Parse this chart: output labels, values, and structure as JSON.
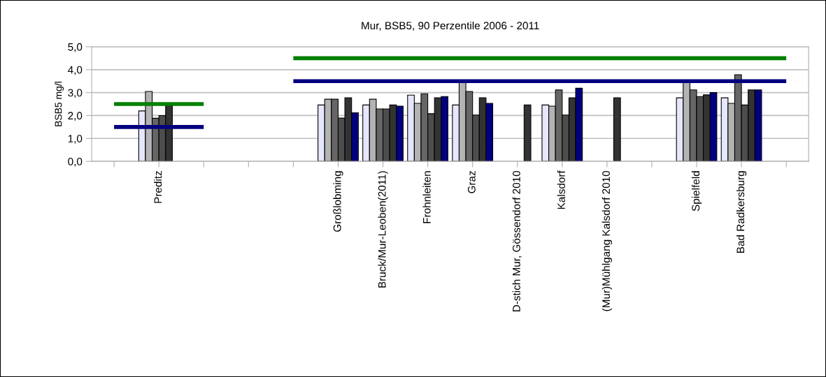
{
  "chart_data": {
    "type": "bar",
    "title": "Mur, BSB5, 90 Perzentile 2006 - 2011",
    "ylabel": "BSB5 mg/l",
    "categories": [
      null,
      "Preditz",
      null,
      null,
      null,
      "Großlobming",
      "Bruck/Mur-Leoben(2011)",
      "Frohnleiten",
      "Graz",
      "D-stich Mur, Gössendorf 2010",
      "Kalsdorf",
      "(Mur)Mühlgang Kalsdorf 2010",
      null,
      "Spielfeld",
      "Bad Radkersburg",
      null
    ],
    "series": [
      {
        "color": "#e6e6ff",
        "values": [
          null,
          2.2,
          null,
          null,
          null,
          2.46,
          2.46,
          2.89,
          2.46,
          null,
          2.46,
          null,
          null,
          2.77,
          2.77,
          null
        ]
      },
      {
        "color": "#b3b3b3",
        "values": [
          null,
          3.05,
          null,
          null,
          null,
          2.71,
          2.71,
          2.53,
          3.5,
          null,
          2.41,
          null,
          null,
          3.5,
          2.53,
          null
        ]
      },
      {
        "color": "#666666",
        "values": [
          null,
          1.88,
          null,
          null,
          null,
          2.71,
          2.29,
          2.95,
          3.05,
          null,
          3.12,
          null,
          null,
          3.12,
          3.78,
          null
        ]
      },
      {
        "color": "#4d4d4d",
        "values": [
          null,
          2.0,
          null,
          null,
          null,
          1.89,
          2.29,
          2.08,
          2.02,
          null,
          2.02,
          null,
          null,
          2.83,
          2.46,
          null
        ]
      },
      {
        "color": "#333333",
        "values": [
          null,
          2.45,
          null,
          null,
          null,
          2.77,
          2.46,
          2.77,
          2.77,
          2.46,
          2.77,
          2.77,
          null,
          2.9,
          3.12,
          null
        ]
      },
      {
        "color": "#000080",
        "values": [
          null,
          null,
          null,
          null,
          null,
          2.12,
          2.41,
          2.83,
          2.53,
          null,
          3.19,
          null,
          null,
          3.0,
          3.12,
          null
        ]
      },
      {
        "type": "line",
        "color": "#008000",
        "values": [
          2.5,
          2.5,
          2.5,
          null,
          4.5,
          4.5,
          4.5,
          4.5,
          4.5,
          4.5,
          4.5,
          4.5,
          4.5,
          4.5,
          4.5,
          4.5
        ]
      },
      {
        "type": "line",
        "color": "#000080",
        "values": [
          1.5,
          1.5,
          1.5,
          null,
          3.5,
          3.5,
          3.5,
          3.5,
          3.5,
          3.5,
          3.5,
          3.5,
          3.5,
          3.5,
          3.5,
          3.5
        ]
      }
    ],
    "ylim": [
      0,
      5
    ],
    "yticks": [
      {
        "value": 0,
        "label": "0,0"
      },
      {
        "value": 1,
        "label": "1,0"
      },
      {
        "value": 2,
        "label": "2,0"
      },
      {
        "value": 3,
        "label": "3,0"
      },
      {
        "value": 4,
        "label": "4,0"
      },
      {
        "value": 5,
        "label": "5,0"
      }
    ],
    "grid": "y",
    "legend": false
  }
}
